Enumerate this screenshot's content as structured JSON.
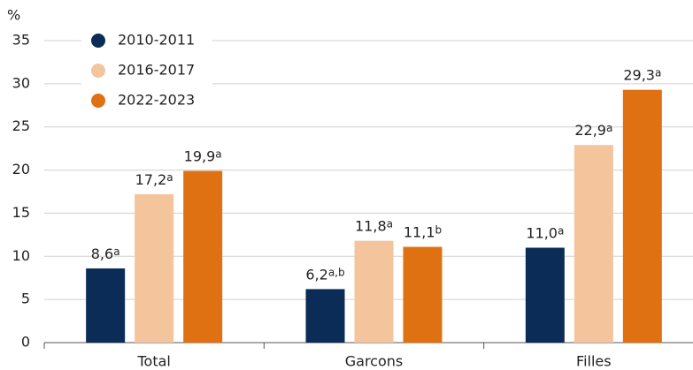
{
  "chart_data": {
    "type": "bar",
    "y_label": "%",
    "categories": [
      "Total",
      "Garcons",
      "Filles"
    ],
    "series": [
      {
        "name": "2010-2011",
        "color": "#0b2c57",
        "values": [
          8.6,
          6.2,
          11.0
        ],
        "value_labels": [
          "8,6",
          "6,2",
          "11,0"
        ],
        "value_label_notes": [
          "a",
          "a,b",
          "a"
        ]
      },
      {
        "name": "2016-2017",
        "color": "#f4c49c",
        "values": [
          17.2,
          11.8,
          22.9
        ],
        "value_labels": [
          "17,2",
          "11,8",
          "22,9"
        ],
        "value_label_notes": [
          "a",
          "a",
          "a"
        ]
      },
      {
        "name": "2022-2023",
        "color": "#e07113",
        "values": [
          19.9,
          11.1,
          29.3
        ],
        "value_labels": [
          "19,9",
          "11,1",
          "29,3"
        ],
        "value_label_notes": [
          "a",
          "b",
          "a"
        ]
      }
    ],
    "ylim": [
      0,
      35
    ],
    "yticks": [
      0,
      5,
      10,
      15,
      20,
      25,
      30,
      35
    ],
    "grid": true,
    "legend": "upper left"
  }
}
